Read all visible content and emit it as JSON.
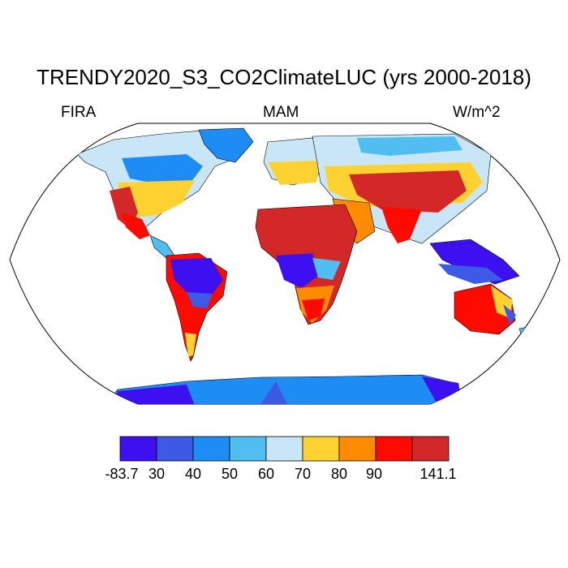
{
  "title": "TREND​Y2020_S3_CO2ClimateLUC (yrs 2000-2018)",
  "left_label": "FIRA",
  "center_label": "MAM",
  "right_label": "W/m^2",
  "colorbar": {
    "colors": [
      "#3c10f0",
      "#3c5ae6",
      "#1e8cf5",
      "#50bef0",
      "#c8e6f5",
      "#ffd232",
      "#ff8c00",
      "#ff0a00",
      "#d22828"
    ],
    "labels": [
      "-83.7",
      "30",
      "40",
      "50",
      "60",
      "70",
      "80",
      "90",
      "141.1"
    ]
  },
  "map_colors": {
    "ocean": "#ffffff",
    "coast": "#000000",
    "very_low": "#3c10f0",
    "low": "#3c5ae6",
    "mid_low": "#1e8cf5",
    "mid": "#50bef0",
    "pale": "#c8e6f5",
    "yellow": "#ffd232",
    "orange": "#ff8c00",
    "red": "#ff0a00",
    "dark_red": "#d22828"
  }
}
